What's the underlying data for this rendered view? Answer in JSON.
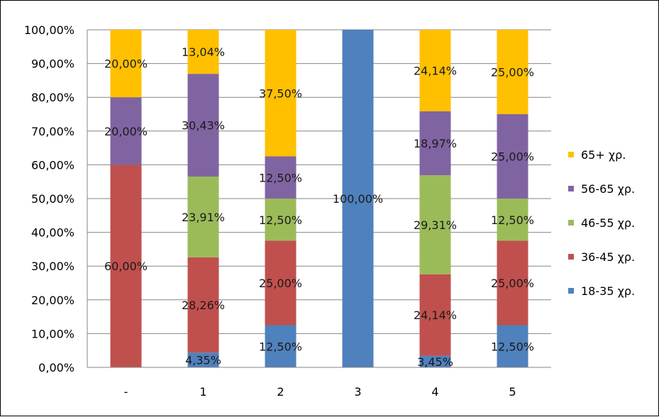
{
  "chart_data": {
    "type": "bar",
    "stacked": true,
    "categories": [
      "-",
      "1",
      "2",
      "3",
      "4",
      "5"
    ],
    "series": [
      {
        "name": "18-35 χρ.",
        "color": "#4f81bd",
        "values": [
          0,
          4.35,
          12.5,
          100.0,
          3.45,
          12.5
        ],
        "labels": [
          "",
          "4,35%",
          "12,50%",
          "100,00%",
          "3,45%",
          "12,50%"
        ]
      },
      {
        "name": "36-45 χρ.",
        "color": "#c0504d",
        "values": [
          60.0,
          28.26,
          25.0,
          0,
          24.14,
          25.0
        ],
        "labels": [
          "60,00%",
          "28,26%",
          "25,00%",
          "",
          "24,14%",
          "25,00%"
        ]
      },
      {
        "name": "46-55 χρ.",
        "color": "#9bbb59",
        "values": [
          0,
          23.91,
          12.5,
          0,
          29.31,
          12.5
        ],
        "labels": [
          "",
          "23,91%",
          "12,50%",
          "",
          "29,31%",
          "12,50%"
        ]
      },
      {
        "name": "56-65 χρ.",
        "color": "#8064a2",
        "values": [
          20.0,
          30.43,
          12.5,
          0,
          18.97,
          25.0
        ],
        "labels": [
          "20,00%",
          "30,43%",
          "12,50%",
          "",
          "18,97%",
          "25,00%"
        ]
      },
      {
        "name": "65+ χρ.",
        "color": "#ffc000",
        "values": [
          20.0,
          13.04,
          37.5,
          0,
          24.14,
          25.0
        ],
        "labels": [
          "20,00%",
          "13,04%",
          "37,50%",
          "",
          "24,14%",
          "25,00%"
        ]
      }
    ],
    "y_ticks": [
      "0,00%",
      "10,00%",
      "20,00%",
      "30,00%",
      "40,00%",
      "50,00%",
      "60,00%",
      "70,00%",
      "80,00%",
      "90,00%",
      "100,00%"
    ],
    "ylim": [
      0,
      100
    ],
    "grid": true,
    "legend_position": "right"
  }
}
